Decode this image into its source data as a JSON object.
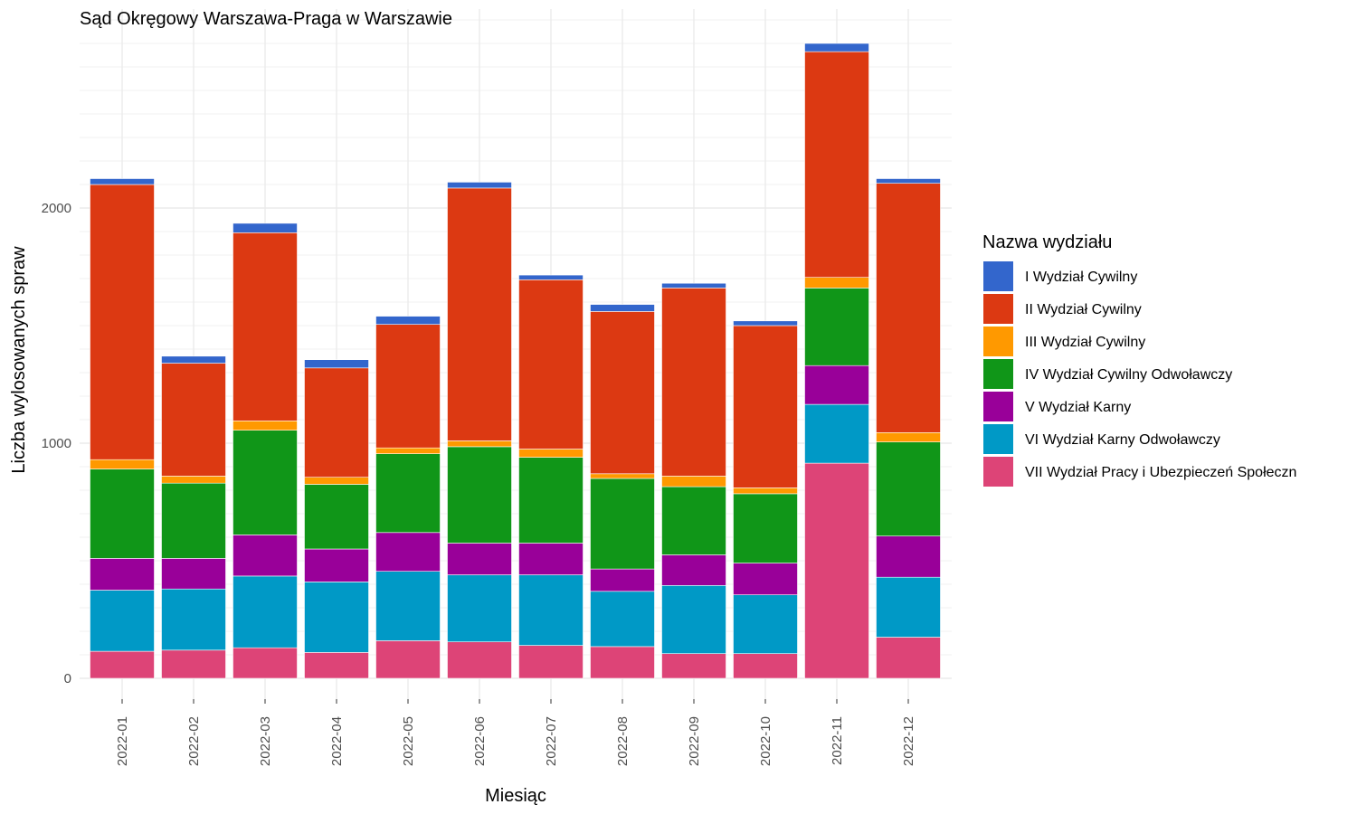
{
  "chart_data": {
    "type": "bar",
    "stacked": true,
    "title": "Sąd Okręgowy Warszawa-Praga w Warszawie",
    "xlabel": "Miesiąc",
    "ylabel": "Liczba wylosowanych spraw",
    "ylim": [
      0,
      2800
    ],
    "yticks": [
      0,
      1000,
      2000
    ],
    "grid": true,
    "legend_title": "Nazwa wydziału",
    "legend_position": "right",
    "categories": [
      "2022-01",
      "2022-02",
      "2022-03",
      "2022-04",
      "2022-05",
      "2022-06",
      "2022-07",
      "2022-08",
      "2022-09",
      "2022-10",
      "2022-11",
      "2022-12"
    ],
    "series": [
      {
        "name": "VII Wydział Pracy i Ubezpieczeń Społeczn",
        "color": "#dd4477",
        "values": [
          115,
          120,
          130,
          110,
          160,
          155,
          140,
          135,
          105,
          105,
          915,
          175
        ]
      },
      {
        "name": "VI Wydział Karny Odwoławczy",
        "color": "#0099c6",
        "values": [
          260,
          260,
          305,
          300,
          295,
          285,
          300,
          235,
          290,
          250,
          250,
          255
        ]
      },
      {
        "name": "V Wydział Karny",
        "color": "#990099",
        "values": [
          135,
          130,
          175,
          140,
          165,
          135,
          135,
          95,
          130,
          135,
          165,
          175
        ]
      },
      {
        "name": "IV Wydział Cywilny Odwoławczy",
        "color": "#109618",
        "values": [
          380,
          320,
          445,
          275,
          335,
          410,
          365,
          385,
          290,
          295,
          330,
          400
        ]
      },
      {
        "name": "III Wydział Cywilny",
        "color": "#ff9900",
        "values": [
          40,
          30,
          40,
          30,
          25,
          25,
          35,
          20,
          45,
          25,
          45,
          40
        ]
      },
      {
        "name": "II Wydział Cywilny",
        "color": "#dc3912",
        "values": [
          1170,
          480,
          800,
          465,
          525,
          1075,
          720,
          690,
          800,
          690,
          960,
          1060
        ]
      },
      {
        "name": "I Wydział Cywilny",
        "color": "#3366cc",
        "values": [
          25,
          30,
          40,
          35,
          35,
          25,
          20,
          30,
          20,
          20,
          35,
          20
        ]
      }
    ]
  }
}
